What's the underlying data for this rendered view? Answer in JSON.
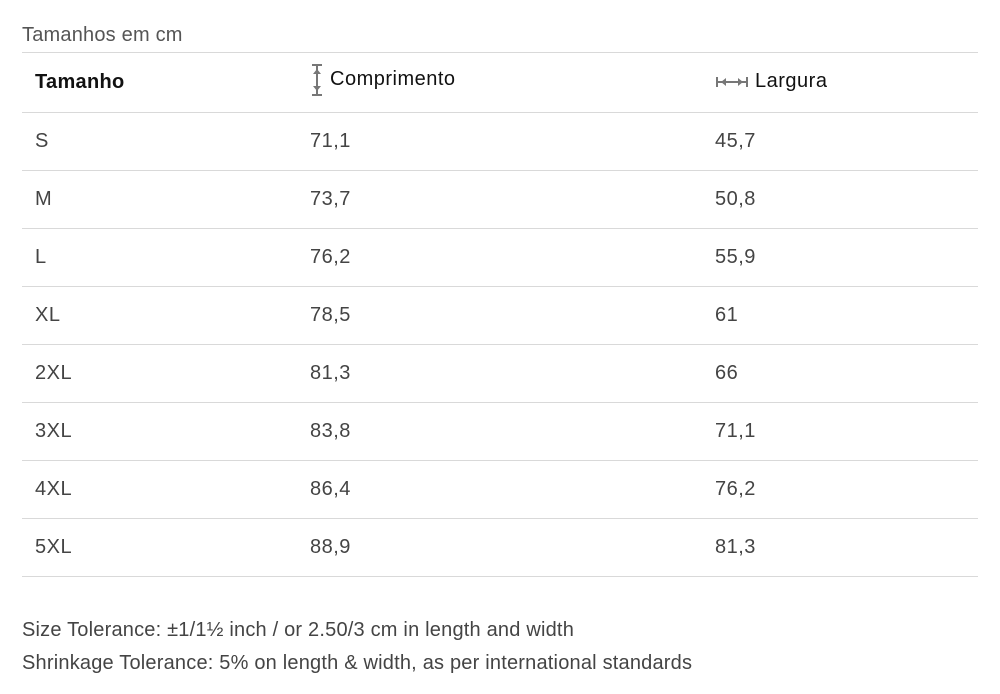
{
  "caption": "Tamanhos em cm",
  "table": {
    "headers": {
      "size": "Tamanho",
      "length": "Comprimento",
      "width": "Largura"
    },
    "header_icons": {
      "length": "vertical-length-arrow-icon",
      "width": "horizontal-width-arrow-icon"
    },
    "rows": [
      {
        "size": "S",
        "length": "71,1",
        "width": "45,7"
      },
      {
        "size": "M",
        "length": "73,7",
        "width": "50,8"
      },
      {
        "size": "L",
        "length": "76,2",
        "width": "55,9"
      },
      {
        "size": "XL",
        "length": "78,5",
        "width": "61"
      },
      {
        "size": "2XL",
        "length": "81,3",
        "width": "66"
      },
      {
        "size": "3XL",
        "length": "83,8",
        "width": "71,1"
      },
      {
        "size": "4XL",
        "length": "86,4",
        "width": "76,2"
      },
      {
        "size": "5XL",
        "length": "88,9",
        "width": "81,3"
      }
    ]
  },
  "notes": {
    "size_tolerance": "Size Tolerance: ±1/1½ inch / or 2.50/3 cm in length and width",
    "shrinkage_tolerance": "Shrinkage Tolerance: 5% on length & width, as per international standards"
  },
  "colors": {
    "text": "#333333",
    "header_text": "#111111",
    "divider": "#d9d9d9"
  }
}
